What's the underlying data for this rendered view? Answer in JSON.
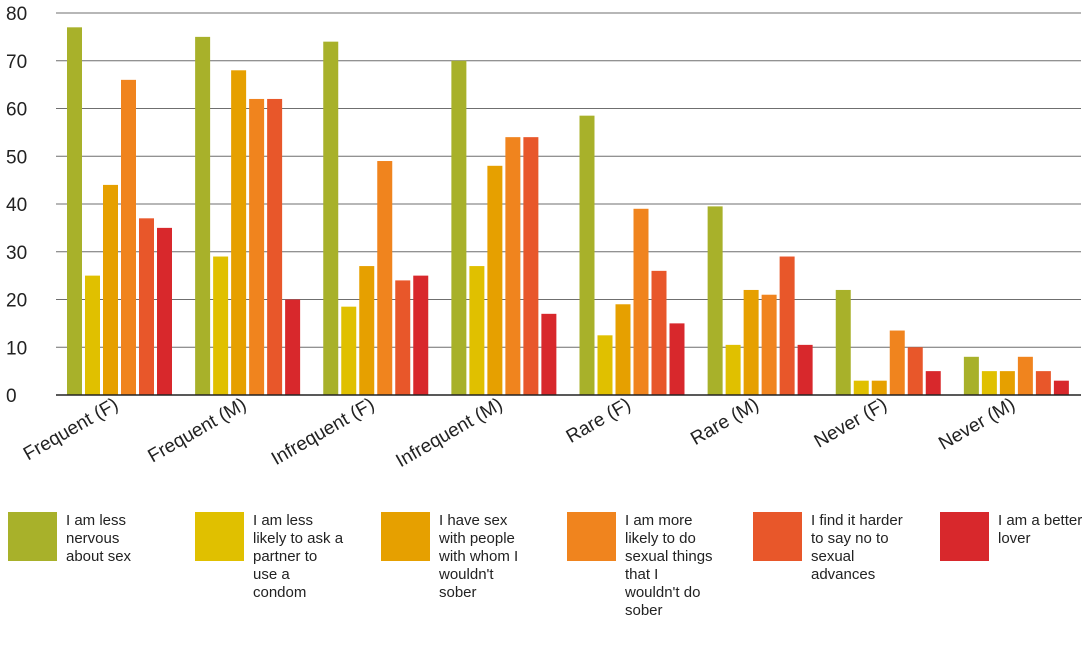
{
  "chart_data": {
    "type": "bar",
    "title": "",
    "xlabel": "",
    "ylabel": "",
    "ylim": [
      0,
      80
    ],
    "yticks": [
      0,
      10,
      20,
      30,
      40,
      50,
      60,
      70,
      80
    ],
    "grid": true,
    "legend_position": "bottom",
    "categories": [
      "Frequent (F)",
      "Frequent (M)",
      "Infrequent (F)",
      "Infrequent (M)",
      "Rare (F)",
      "Rare (M)",
      "Never (F)",
      "Never (M)"
    ],
    "series": [
      {
        "name": "I am less nervous about sex",
        "color": "#a8b12a",
        "values": [
          77,
          75,
          74,
          70,
          58.5,
          39.5,
          22,
          8
        ]
      },
      {
        "name": "I am less likely to ask a partner to use a condom",
        "color": "#e0c000",
        "values": [
          25,
          29,
          18.5,
          27,
          12.5,
          10.5,
          3,
          5
        ]
      },
      {
        "name": "I have sex with people with whom I wouldn't sober",
        "color": "#e6a000",
        "values": [
          44,
          68,
          27,
          48,
          19,
          22,
          3,
          5
        ]
      },
      {
        "name": "I am more likely to do sexual things that I wouldn't do sober",
        "color": "#f0841e",
        "values": [
          66,
          62,
          49,
          54,
          39,
          21,
          13.5,
          8
        ]
      },
      {
        "name": "I find it harder to say no to sexual advances",
        "color": "#e8572a",
        "values": [
          37,
          62,
          24,
          54,
          26,
          29,
          10,
          5
        ]
      },
      {
        "name": "I am a better lover",
        "color": "#d8282c",
        "values": [
          35,
          20,
          25,
          17,
          15,
          10.5,
          5,
          3
        ]
      }
    ]
  }
}
